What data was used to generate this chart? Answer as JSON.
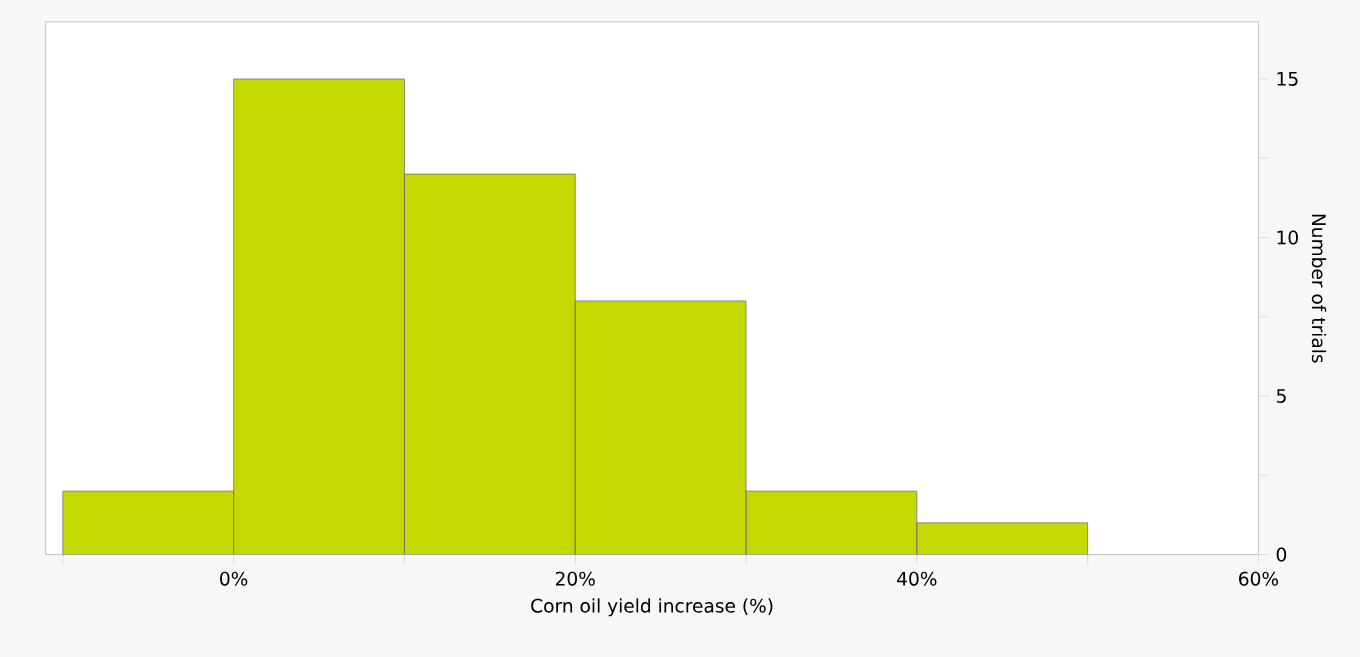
{
  "chart_data": {
    "type": "histogram",
    "xlabel": "Corn oil yield increase (%)",
    "ylabel": "Number of trials",
    "bins": [
      -10,
      0,
      10,
      20,
      30,
      40,
      50
    ],
    "values": [
      2,
      15,
      12,
      8,
      2,
      1
    ],
    "color": "#c5d900",
    "xlim": [
      -11,
      60
    ],
    "xticks": [
      {
        "value": -10,
        "label": null
      },
      {
        "value": 0,
        "label": "0%"
      },
      {
        "value": 10,
        "label": null
      },
      {
        "value": 20,
        "label": "20%"
      },
      {
        "value": 30,
        "label": null
      },
      {
        "value": 40,
        "label": "40%"
      },
      {
        "value": 50,
        "label": null
      },
      {
        "value": 60,
        "label": "60%"
      }
    ],
    "ylim": [
      0,
      16.8
    ],
    "yticks": [
      0,
      {
        "value": 2.5,
        "label": null
      },
      5,
      {
        "value": 7.5,
        "label": null
      },
      10,
      {
        "value": 12.5,
        "label": null
      },
      15
    ],
    "grid": false
  }
}
